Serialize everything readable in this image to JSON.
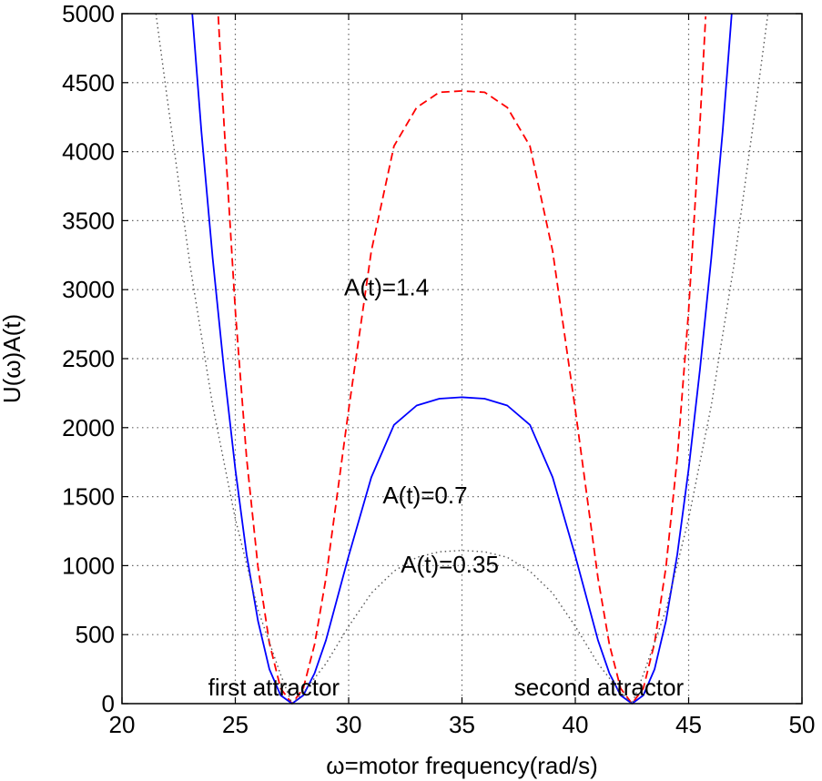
{
  "chart_data": {
    "type": "line",
    "xlabel": "ω=motor frequency(rad/s)",
    "ylabel": "U(ω)A(t)",
    "xlim": [
      20,
      50
    ],
    "ylim": [
      0,
      5000
    ],
    "x_ticks": [
      20,
      25,
      30,
      35,
      40,
      45,
      50
    ],
    "y_ticks": [
      0,
      500,
      1000,
      1500,
      2000,
      2500,
      3000,
      3500,
      4000,
      4500,
      5000
    ],
    "grid": true,
    "series": [
      {
        "name": "A(t)=1.4",
        "color": "#ff0000",
        "line_style": "dashed",
        "x": [
          24.25,
          24.5,
          25.0,
          25.5,
          26.0,
          26.5,
          27.0,
          27.5,
          28.0,
          28.5,
          29.0,
          30.0,
          31.0,
          32.0,
          33.0,
          34.0,
          35.0,
          36.0,
          37.0,
          38.0,
          39.0,
          40.0,
          41.0,
          41.5,
          42.0,
          42.5,
          43.0,
          43.5,
          44.0,
          44.5,
          45.0,
          45.5,
          45.75
        ],
        "y": [
          4980,
          4200,
          2850,
          1780,
          990,
          440,
          110,
          0,
          110,
          430,
          910,
          2130,
          3280,
          4040,
          4320,
          4430,
          4440,
          4430,
          4320,
          4040,
          3280,
          2130,
          910,
          430,
          110,
          0,
          110,
          440,
          990,
          1780,
          2850,
          4200,
          4980
        ]
      },
      {
        "name": "A(t)=0.7",
        "color": "#0000ff",
        "line_style": "solid",
        "x": [
          23.1,
          23.5,
          24.0,
          24.5,
          25.0,
          25.5,
          26.0,
          26.5,
          27.0,
          27.5,
          28.0,
          28.5,
          29.0,
          30.0,
          31.0,
          32.0,
          33.0,
          34.0,
          35.0,
          36.0,
          37.0,
          38.0,
          39.0,
          40.0,
          41.0,
          41.5,
          42.0,
          42.5,
          43.0,
          43.5,
          44.0,
          44.5,
          45.0,
          45.5,
          46.0,
          46.5,
          46.9
        ],
        "y": [
          5000,
          4150,
          3230,
          2420,
          1700,
          1080,
          600,
          250,
          60,
          0,
          60,
          220,
          460,
          1070,
          1640,
          2020,
          2160,
          2210,
          2220,
          2210,
          2160,
          2020,
          1640,
          1070,
          460,
          220,
          60,
          0,
          60,
          250,
          600,
          1080,
          1700,
          2420,
          3230,
          4150,
          5000
        ]
      },
      {
        "name": "A(t)=0.35",
        "color": "#555555",
        "line_style": "dotted",
        "x": [
          21.5,
          22.0,
          23.0,
          24.0,
          25.0,
          26.0,
          27.0,
          27.5,
          28.0,
          29.0,
          30.0,
          31.0,
          32.0,
          33.0,
          34.0,
          35.0,
          36.0,
          37.0,
          38.0,
          39.0,
          40.0,
          41.0,
          42.0,
          42.5,
          43.0,
          44.0,
          45.0,
          46.0,
          47.0,
          48.0,
          48.5
        ],
        "y": [
          5000,
          4380,
          3180,
          2160,
          1340,
          680,
          210,
          0,
          80,
          290,
          560,
          800,
          960,
          1060,
          1100,
          1110,
          1100,
          1060,
          960,
          800,
          560,
          290,
          80,
          0,
          210,
          680,
          1340,
          2160,
          3180,
          4380,
          5000
        ]
      }
    ],
    "annotations": [
      {
        "text": "A(t)=1.4",
        "x": 29.8,
        "y": 2960
      },
      {
        "text": "A(t)=0.7",
        "x": 31.5,
        "y": 1450
      },
      {
        "text": "A(t)=0.35",
        "x": 32.3,
        "y": 950
      },
      {
        "text": "first attractor",
        "x": 23.8,
        "y": 60
      },
      {
        "text": "second attractor",
        "x": 37.3,
        "y": 60
      }
    ]
  }
}
